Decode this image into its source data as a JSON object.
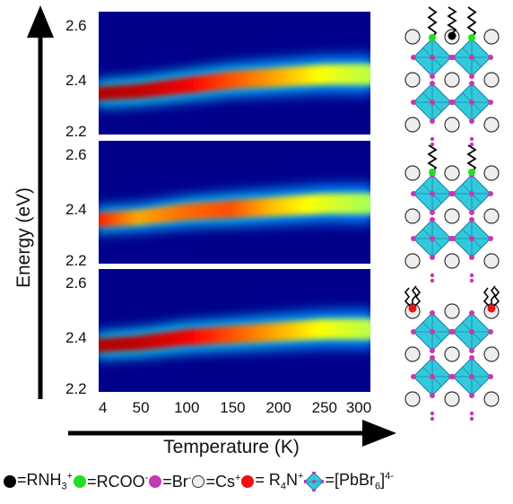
{
  "chart_data": [
    {
      "type": "heatmap",
      "panel": "top",
      "x": [
        4,
        50,
        100,
        150,
        200,
        250,
        300
      ],
      "ylim": [
        2.2,
        2.65
      ],
      "yticks": [
        "2.2",
        "2.4",
        "2.6"
      ],
      "peak_energy": [
        2.35,
        2.36,
        2.38,
        2.4,
        2.41,
        2.42,
        2.42
      ],
      "relative_intensity": [
        1.0,
        0.98,
        0.9,
        0.75,
        0.6,
        0.45,
        0.35
      ]
    },
    {
      "type": "heatmap",
      "panel": "middle",
      "x": [
        4,
        50,
        100,
        150,
        200,
        250,
        300
      ],
      "ylim": [
        2.2,
        2.65
      ],
      "yticks": [
        "2.2",
        "2.4",
        "2.6"
      ],
      "peak_energy": [
        2.36,
        2.37,
        2.39,
        2.4,
        2.41,
        2.42,
        2.42
      ],
      "relative_intensity": [
        0.85,
        0.6,
        0.7,
        0.75,
        0.55,
        0.42,
        0.32
      ]
    },
    {
      "type": "heatmap",
      "panel": "bottom",
      "x": [
        4,
        50,
        100,
        150,
        200,
        250,
        300
      ],
      "ylim": [
        2.2,
        2.65
      ],
      "yticks": [
        "2.2",
        "2.4",
        "2.6"
      ],
      "peak_energy": [
        2.37,
        2.38,
        2.4,
        2.41,
        2.42,
        2.43,
        2.43
      ],
      "relative_intensity": [
        1.0,
        0.98,
        0.9,
        0.75,
        0.6,
        0.45,
        0.35
      ]
    }
  ],
  "axes": {
    "ylabel": "Energy (eV)",
    "xlabel": "Temperature (K)",
    "xticks": [
      "4",
      "50",
      "100",
      "150",
      "200",
      "250",
      "300"
    ]
  },
  "legend": {
    "items": [
      {
        "label": "=RNH",
        "sup": "+",
        "sub": "3",
        "color": "#000000"
      },
      {
        "label": "=RCOO",
        "sup": "-",
        "color": "#22dd22"
      },
      {
        "label": "=Br",
        "sup": "-",
        "color": "#c43ab0"
      },
      {
        "label": "=Cs",
        "sup": "+",
        "color": "#eeeeee"
      },
      {
        "label": "= R",
        "sub": "4",
        "tail": "N",
        "sup": "+",
        "color": "#ee1111"
      },
      {
        "label": "=[PbBr",
        "sub": "6",
        "tail": "]",
        "sup": "4-",
        "color": "#33c9dd"
      }
    ]
  },
  "colors": {
    "background": "#00008b",
    "octahedron": "#33c9dd",
    "cesium": "#eeeeee",
    "bromide": "#c43ab0",
    "ammonium": "#000000",
    "carboxylate": "#22dd22",
    "quaternary_ammonium": "#ee1111"
  }
}
